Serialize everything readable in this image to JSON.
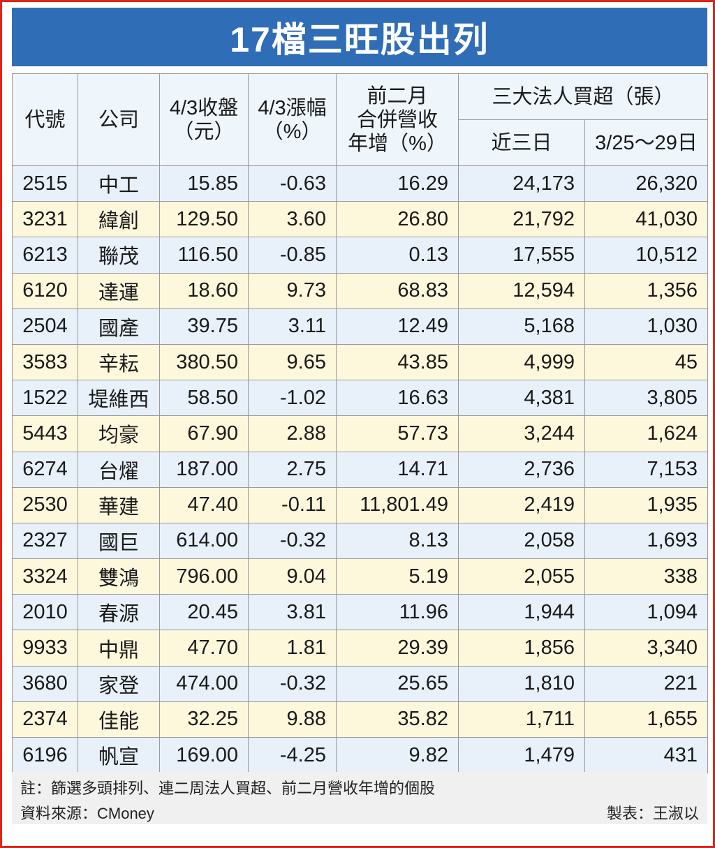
{
  "title": "17檔三旺股出列",
  "headers": {
    "code": "代號",
    "company": "公司",
    "close": [
      "4/3收盤",
      "（元）"
    ],
    "change": [
      "4/3漲幅",
      "（%）"
    ],
    "revenue": [
      "前二月",
      "合併營收",
      "年增（%）"
    ],
    "institutional": "三大法人買超（張）",
    "recent3": "近三日",
    "week": "3/25～29日"
  },
  "rows": [
    {
      "code": "2515",
      "company": "中工",
      "close": "15.85",
      "change": "-0.63",
      "revenue": "16.29",
      "recent3": "24,173",
      "week": "26,320"
    },
    {
      "code": "3231",
      "company": "緯創",
      "close": "129.50",
      "change": "3.60",
      "revenue": "26.80",
      "recent3": "21,792",
      "week": "41,030"
    },
    {
      "code": "6213",
      "company": "聯茂",
      "close": "116.50",
      "change": "-0.85",
      "revenue": "0.13",
      "recent3": "17,555",
      "week": "10,512"
    },
    {
      "code": "6120",
      "company": "達運",
      "close": "18.60",
      "change": "9.73",
      "revenue": "68.83",
      "recent3": "12,594",
      "week": "1,356"
    },
    {
      "code": "2504",
      "company": "國產",
      "close": "39.75",
      "change": "3.11",
      "revenue": "12.49",
      "recent3": "5,168",
      "week": "1,030"
    },
    {
      "code": "3583",
      "company": "辛耘",
      "close": "380.50",
      "change": "9.65",
      "revenue": "43.85",
      "recent3": "4,999",
      "week": "45"
    },
    {
      "code": "1522",
      "company": "堤維西",
      "close": "58.50",
      "change": "-1.02",
      "revenue": "16.63",
      "recent3": "4,381",
      "week": "3,805"
    },
    {
      "code": "5443",
      "company": "均豪",
      "close": "67.90",
      "change": "2.88",
      "revenue": "57.73",
      "recent3": "3,244",
      "week": "1,624"
    },
    {
      "code": "6274",
      "company": "台燿",
      "close": "187.00",
      "change": "2.75",
      "revenue": "14.71",
      "recent3": "2,736",
      "week": "7,153"
    },
    {
      "code": "2530",
      "company": "華建",
      "close": "47.40",
      "change": "-0.11",
      "revenue": "11,801.49",
      "recent3": "2,419",
      "week": "1,935"
    },
    {
      "code": "2327",
      "company": "國巨",
      "close": "614.00",
      "change": "-0.32",
      "revenue": "8.13",
      "recent3": "2,058",
      "week": "1,693"
    },
    {
      "code": "3324",
      "company": "雙鴻",
      "close": "796.00",
      "change": "9.04",
      "revenue": "5.19",
      "recent3": "2,055",
      "week": "338"
    },
    {
      "code": "2010",
      "company": "春源",
      "close": "20.45",
      "change": "3.81",
      "revenue": "11.96",
      "recent3": "1,944",
      "week": "1,094"
    },
    {
      "code": "9933",
      "company": "中鼎",
      "close": "47.70",
      "change": "1.81",
      "revenue": "29.39",
      "recent3": "1,856",
      "week": "3,340"
    },
    {
      "code": "3680",
      "company": "家登",
      "close": "474.00",
      "change": "-0.32",
      "revenue": "25.65",
      "recent3": "1,810",
      "week": "221"
    },
    {
      "code": "2374",
      "company": "佳能",
      "close": "32.25",
      "change": "9.88",
      "revenue": "35.82",
      "recent3": "1,711",
      "week": "1,655"
    },
    {
      "code": "6196",
      "company": "帆宣",
      "close": "169.00",
      "change": "-4.25",
      "revenue": "9.82",
      "recent3": "1,479",
      "week": "431"
    }
  ],
  "footer": {
    "note": "註：篩選多頭排列、連二周法人買超、前二月營收年增的個股",
    "source": "資料來源：CMoney",
    "maker": "製表：王淑以"
  },
  "colors": {
    "title_bg": "#2f6db6",
    "border": "#e2231a",
    "row_blue": "#e8f1fa",
    "row_yellow": "#fdf7dc"
  }
}
